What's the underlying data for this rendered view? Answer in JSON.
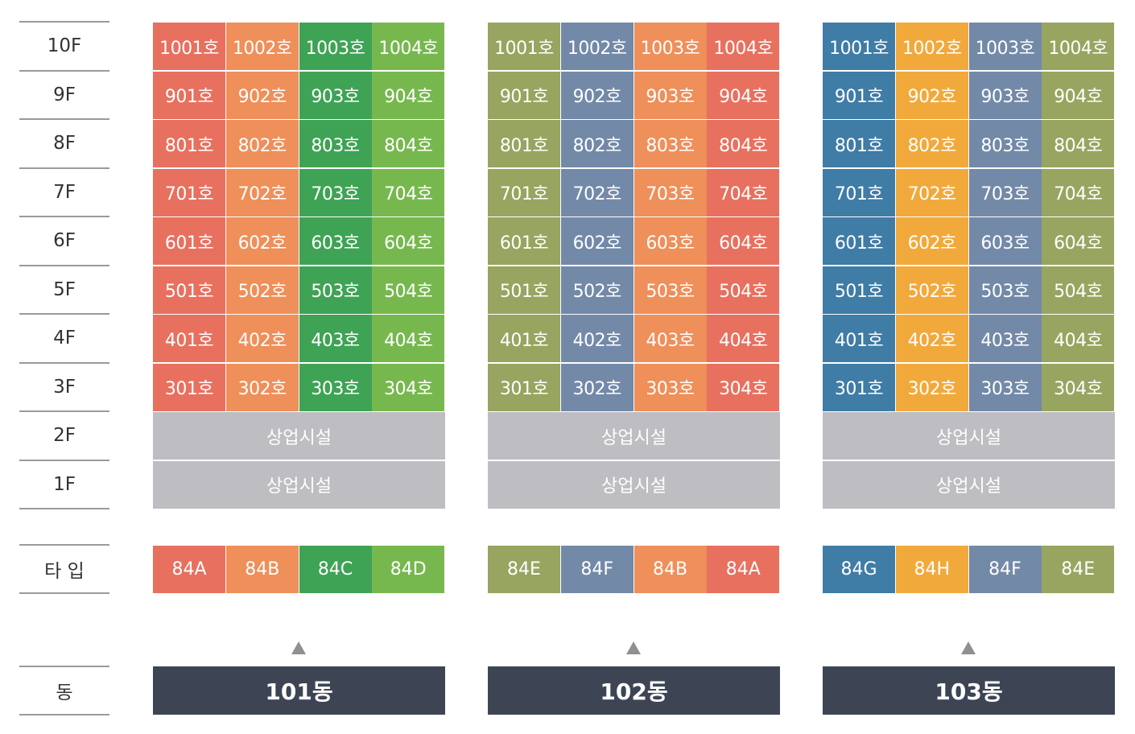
{
  "floor_labels": [
    "10F",
    "9F",
    "8F",
    "7F",
    "6F",
    "5F",
    "4F",
    "3F",
    "2F",
    "1F"
  ],
  "type_label": "타 입",
  "dong_label": "동",
  "colors": {
    "84A": "#e8705f",
    "84B": "#ef8f5a",
    "84C": "#3fa355",
    "84D": "#77b84e",
    "84E": "#97a560",
    "84F": "#7389a8",
    "84G": "#3f7ca6",
    "84H": "#f2a93b",
    "commercial": "#bebdc2",
    "dong_bar": "#3d4555"
  },
  "buildings": [
    {
      "name": "101동",
      "types": [
        "84A",
        "84B",
        "84C",
        "84D"
      ],
      "floors": [
        [
          "1001호",
          "1002호",
          "1003호",
          "1004호"
        ],
        [
          "901호",
          "902호",
          "903호",
          "904호"
        ],
        [
          "801호",
          "802호",
          "803호",
          "804호"
        ],
        [
          "701호",
          "702호",
          "703호",
          "704호"
        ],
        [
          "601호",
          "602호",
          "603호",
          "604호"
        ],
        [
          "501호",
          "502호",
          "503호",
          "504호"
        ],
        [
          "401호",
          "402호",
          "403호",
          "404호"
        ],
        [
          "301호",
          "302호",
          "303호",
          "304호"
        ]
      ],
      "commercial": [
        "상업시설",
        "상업시설"
      ]
    },
    {
      "name": "102동",
      "types": [
        "84E",
        "84F",
        "84B",
        "84A"
      ],
      "floors": [
        [
          "1001호",
          "1002호",
          "1003호",
          "1004호"
        ],
        [
          "901호",
          "902호",
          "903호",
          "904호"
        ],
        [
          "801호",
          "802호",
          "803호",
          "804호"
        ],
        [
          "701호",
          "702호",
          "703호",
          "704호"
        ],
        [
          "601호",
          "602호",
          "603호",
          "604호"
        ],
        [
          "501호",
          "502호",
          "503호",
          "504호"
        ],
        [
          "401호",
          "402호",
          "403호",
          "404호"
        ],
        [
          "301호",
          "302호",
          "303호",
          "304호"
        ]
      ],
      "commercial": [
        "상업시설",
        "상업시설"
      ]
    },
    {
      "name": "103동",
      "types": [
        "84G",
        "84H",
        "84F",
        "84E"
      ],
      "floors": [
        [
          "1001호",
          "1002호",
          "1003호",
          "1004호"
        ],
        [
          "901호",
          "902호",
          "903호",
          "904호"
        ],
        [
          "801호",
          "802호",
          "803호",
          "804호"
        ],
        [
          "701호",
          "702호",
          "703호",
          "704호"
        ],
        [
          "601호",
          "602호",
          "603호",
          "604호"
        ],
        [
          "501호",
          "502호",
          "503호",
          "504호"
        ],
        [
          "401호",
          "402호",
          "403호",
          "404호"
        ],
        [
          "301호",
          "302호",
          "303호",
          "304호"
        ]
      ],
      "commercial": [
        "상업시설",
        "상업시설"
      ]
    }
  ]
}
